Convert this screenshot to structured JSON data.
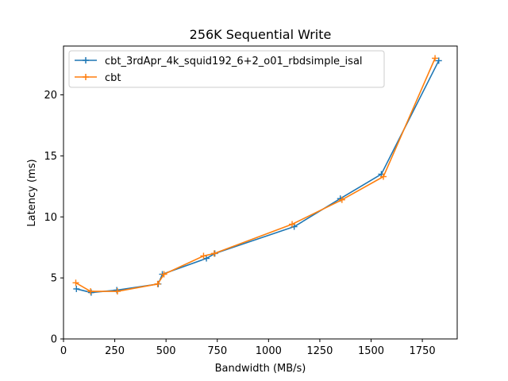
{
  "chart_data": {
    "type": "line",
    "title": "256K  Sequential Write",
    "xlabel": "Bandwidth (MB/s)",
    "ylabel": "Latency (ms)",
    "xlim": [
      0,
      1920
    ],
    "ylim": [
      0,
      24
    ],
    "xticks": [
      0,
      250,
      500,
      750,
      1000,
      1250,
      1500,
      1750
    ],
    "yticks": [
      0,
      5,
      10,
      15,
      20
    ],
    "grid": false,
    "legend_position": "top-left",
    "series": [
      {
        "name": "cbt_3rdApr_4k_squid192_6+2_o01_rbdsimple_isal",
        "color": "#1f77b4",
        "marker": "+",
        "points": [
          [
            63,
            4.1
          ],
          [
            135,
            3.8
          ],
          [
            260,
            4.0
          ],
          [
            462,
            4.5
          ],
          [
            482,
            5.3
          ],
          [
            697,
            6.6
          ],
          [
            738,
            7.0
          ],
          [
            1125,
            9.2
          ],
          [
            1350,
            11.5
          ],
          [
            1550,
            13.5
          ],
          [
            1830,
            22.8
          ]
        ]
      },
      {
        "name": "cbt",
        "color": "#ff7f0e",
        "marker": "+",
        "points": [
          [
            60,
            4.6
          ],
          [
            132,
            3.9
          ],
          [
            263,
            3.9
          ],
          [
            459,
            4.5
          ],
          [
            490,
            5.3
          ],
          [
            683,
            6.8
          ],
          [
            735,
            7.0
          ],
          [
            1115,
            9.4
          ],
          [
            1358,
            11.4
          ],
          [
            1560,
            13.3
          ],
          [
            1812,
            23.0
          ]
        ]
      }
    ]
  }
}
